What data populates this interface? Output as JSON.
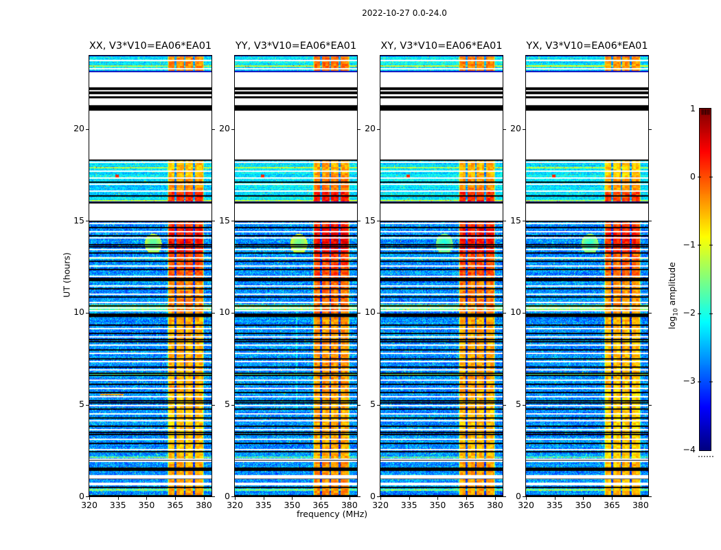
{
  "chart_data": {
    "type": "heatmap",
    "subtype": "dynamic-spectrum-spectrogram",
    "title": "2022-10-27 0.0-24.0",
    "xlabel": "frequency (MHz)",
    "ylabel": "UT (hours)",
    "colormap": "jet",
    "x_range": [
      320,
      384
    ],
    "x_ticks": [
      320,
      335,
      350,
      365,
      380
    ],
    "y_range": [
      0,
      24
    ],
    "y_ticks": [
      0,
      5,
      10,
      15,
      20
    ],
    "colorbar": {
      "label": "log10 amplitude",
      "label_parts": {
        "prefix": "log",
        "sub": "10",
        "suffix": " amplitude"
      },
      "range": [
        -4,
        1
      ],
      "ticks": [
        1,
        0,
        -1,
        -2,
        -3,
        -4
      ]
    },
    "colors": {
      "background": "#ffffff",
      "frame": "#000000",
      "gap": "#ffffff",
      "flagged": "#000000"
    },
    "panels": [
      {
        "title": "XX, V3*V10=EA06*EA01",
        "seed": 11,
        "band_adj": 0.0,
        "blob_amp": -1.7,
        "streak": false,
        "dash": true
      },
      {
        "title": "YY, V3*V10=EA06*EA01",
        "seed": 23,
        "band_adj": 0.12,
        "blob_amp": -1.6,
        "streak": true,
        "dash": false
      },
      {
        "title": "XY, V3*V10=EA06*EA01",
        "seed": 37,
        "band_adj": 0.04,
        "blob_amp": -2.0,
        "streak": false,
        "dash": false
      },
      {
        "title": "YX, V3*V10=EA06*EA01",
        "seed": 49,
        "band_adj": -0.08,
        "blob_amp": -1.9,
        "streak": false,
        "dash": false
      }
    ],
    "rfi_band": {
      "f_start": 361.0,
      "f_end": 380.3,
      "notches": [
        365.2,
        370.1,
        375.0
      ],
      "notch_width": 0.9
    },
    "band_levels": [
      [
        0.0,
        2.0,
        -0.45
      ],
      [
        2.0,
        5.5,
        -0.6
      ],
      [
        5.5,
        10.0,
        -0.48
      ],
      [
        10.0,
        12.0,
        -0.28
      ],
      [
        12.0,
        13.2,
        -0.05
      ],
      [
        13.2,
        14.6,
        0.3
      ],
      [
        14.6,
        15.05,
        0.05
      ],
      [
        15.9,
        16.6,
        0.15
      ],
      [
        16.6,
        17.4,
        -0.35
      ],
      [
        17.4,
        18.4,
        -0.55
      ],
      [
        23.1,
        24.0,
        -0.3
      ]
    ],
    "segments": [
      [
        0.0,
        15.02,
        "data",
        "dense"
      ],
      [
        15.02,
        15.95,
        "gap",
        ""
      ],
      [
        15.95,
        16.02,
        "black",
        ""
      ],
      [
        16.02,
        18.35,
        "data",
        "sparse"
      ],
      [
        18.35,
        21.02,
        "gap",
        ""
      ],
      [
        21.02,
        21.32,
        "black",
        ""
      ],
      [
        21.32,
        21.68,
        "gap",
        ""
      ],
      [
        21.68,
        21.8,
        "black",
        ""
      ],
      [
        21.8,
        21.92,
        "gap",
        ""
      ],
      [
        21.92,
        22.04,
        "black",
        ""
      ],
      [
        22.04,
        22.14,
        "gap",
        ""
      ],
      [
        22.14,
        22.26,
        "black",
        ""
      ],
      [
        22.26,
        23.12,
        "gap",
        ""
      ],
      [
        23.12,
        24.0,
        "data",
        "sparse"
      ]
    ],
    "black_lines": [
      0.04,
      0.5,
      0.96,
      1.42,
      1.54,
      1.98,
      2.44,
      2.9,
      3.36,
      3.48,
      3.82,
      4.28,
      4.74,
      5.08,
      5.2,
      5.66,
      6.12,
      6.58,
      6.7,
      7.04,
      7.5,
      7.96,
      8.42,
      8.54,
      8.88,
      9.34,
      9.8,
      9.92,
      10.38,
      10.84,
      11.3,
      11.76,
      11.88,
      12.34,
      12.8,
      13.26,
      13.6,
      13.72,
      14.18,
      14.64,
      14.98,
      16.35,
      17.12,
      18.3
    ],
    "thick_black": [
      [
        1.42,
        1.56
      ],
      [
        9.78,
        9.94
      ],
      [
        11.74,
        11.9
      ]
    ],
    "white_lines": [
      0.62,
      0.7,
      1.9,
      2.02,
      2.56,
      3.1,
      3.64,
      4.1,
      4.5,
      4.96,
      5.42,
      5.88,
      6.34,
      6.9,
      7.35,
      7.8,
      8.25,
      8.7,
      9.15,
      10.12,
      10.26,
      10.55,
      11.0,
      11.45,
      12.0,
      12.55,
      13.0,
      13.45,
      14.08,
      14.4,
      14.85,
      16.62,
      16.98,
      17.34,
      17.7,
      18.2,
      23.3,
      23.74
    ],
    "thick_white": [
      [
        0.96,
        1.16
      ]
    ],
    "cyan_rows": [
      [
        0.3,
        0.42
      ],
      [
        2.1,
        2.18
      ],
      [
        6.6,
        6.68
      ],
      [
        10.14,
        10.44
      ],
      [
        12.9,
        12.98
      ],
      [
        16.08,
        16.14
      ],
      [
        17.06,
        17.12
      ],
      [
        17.86,
        17.92
      ],
      [
        23.4,
        23.46
      ]
    ],
    "features": {
      "blob": {
        "f": 353.5,
        "t": 13.75,
        "df": 4.5,
        "dt": 0.55
      },
      "streak": {
        "f": 352.3,
        "df": 0.45,
        "t0": 4.8,
        "t1": 10.35,
        "amp": -2.2
      },
      "dot": {
        "f": 334.5,
        "t": 17.45,
        "amp": 0.2
      },
      "dash": {
        "f0": 325.5,
        "f1": 338.0,
        "t": 5.55,
        "amp": -0.4
      }
    }
  }
}
